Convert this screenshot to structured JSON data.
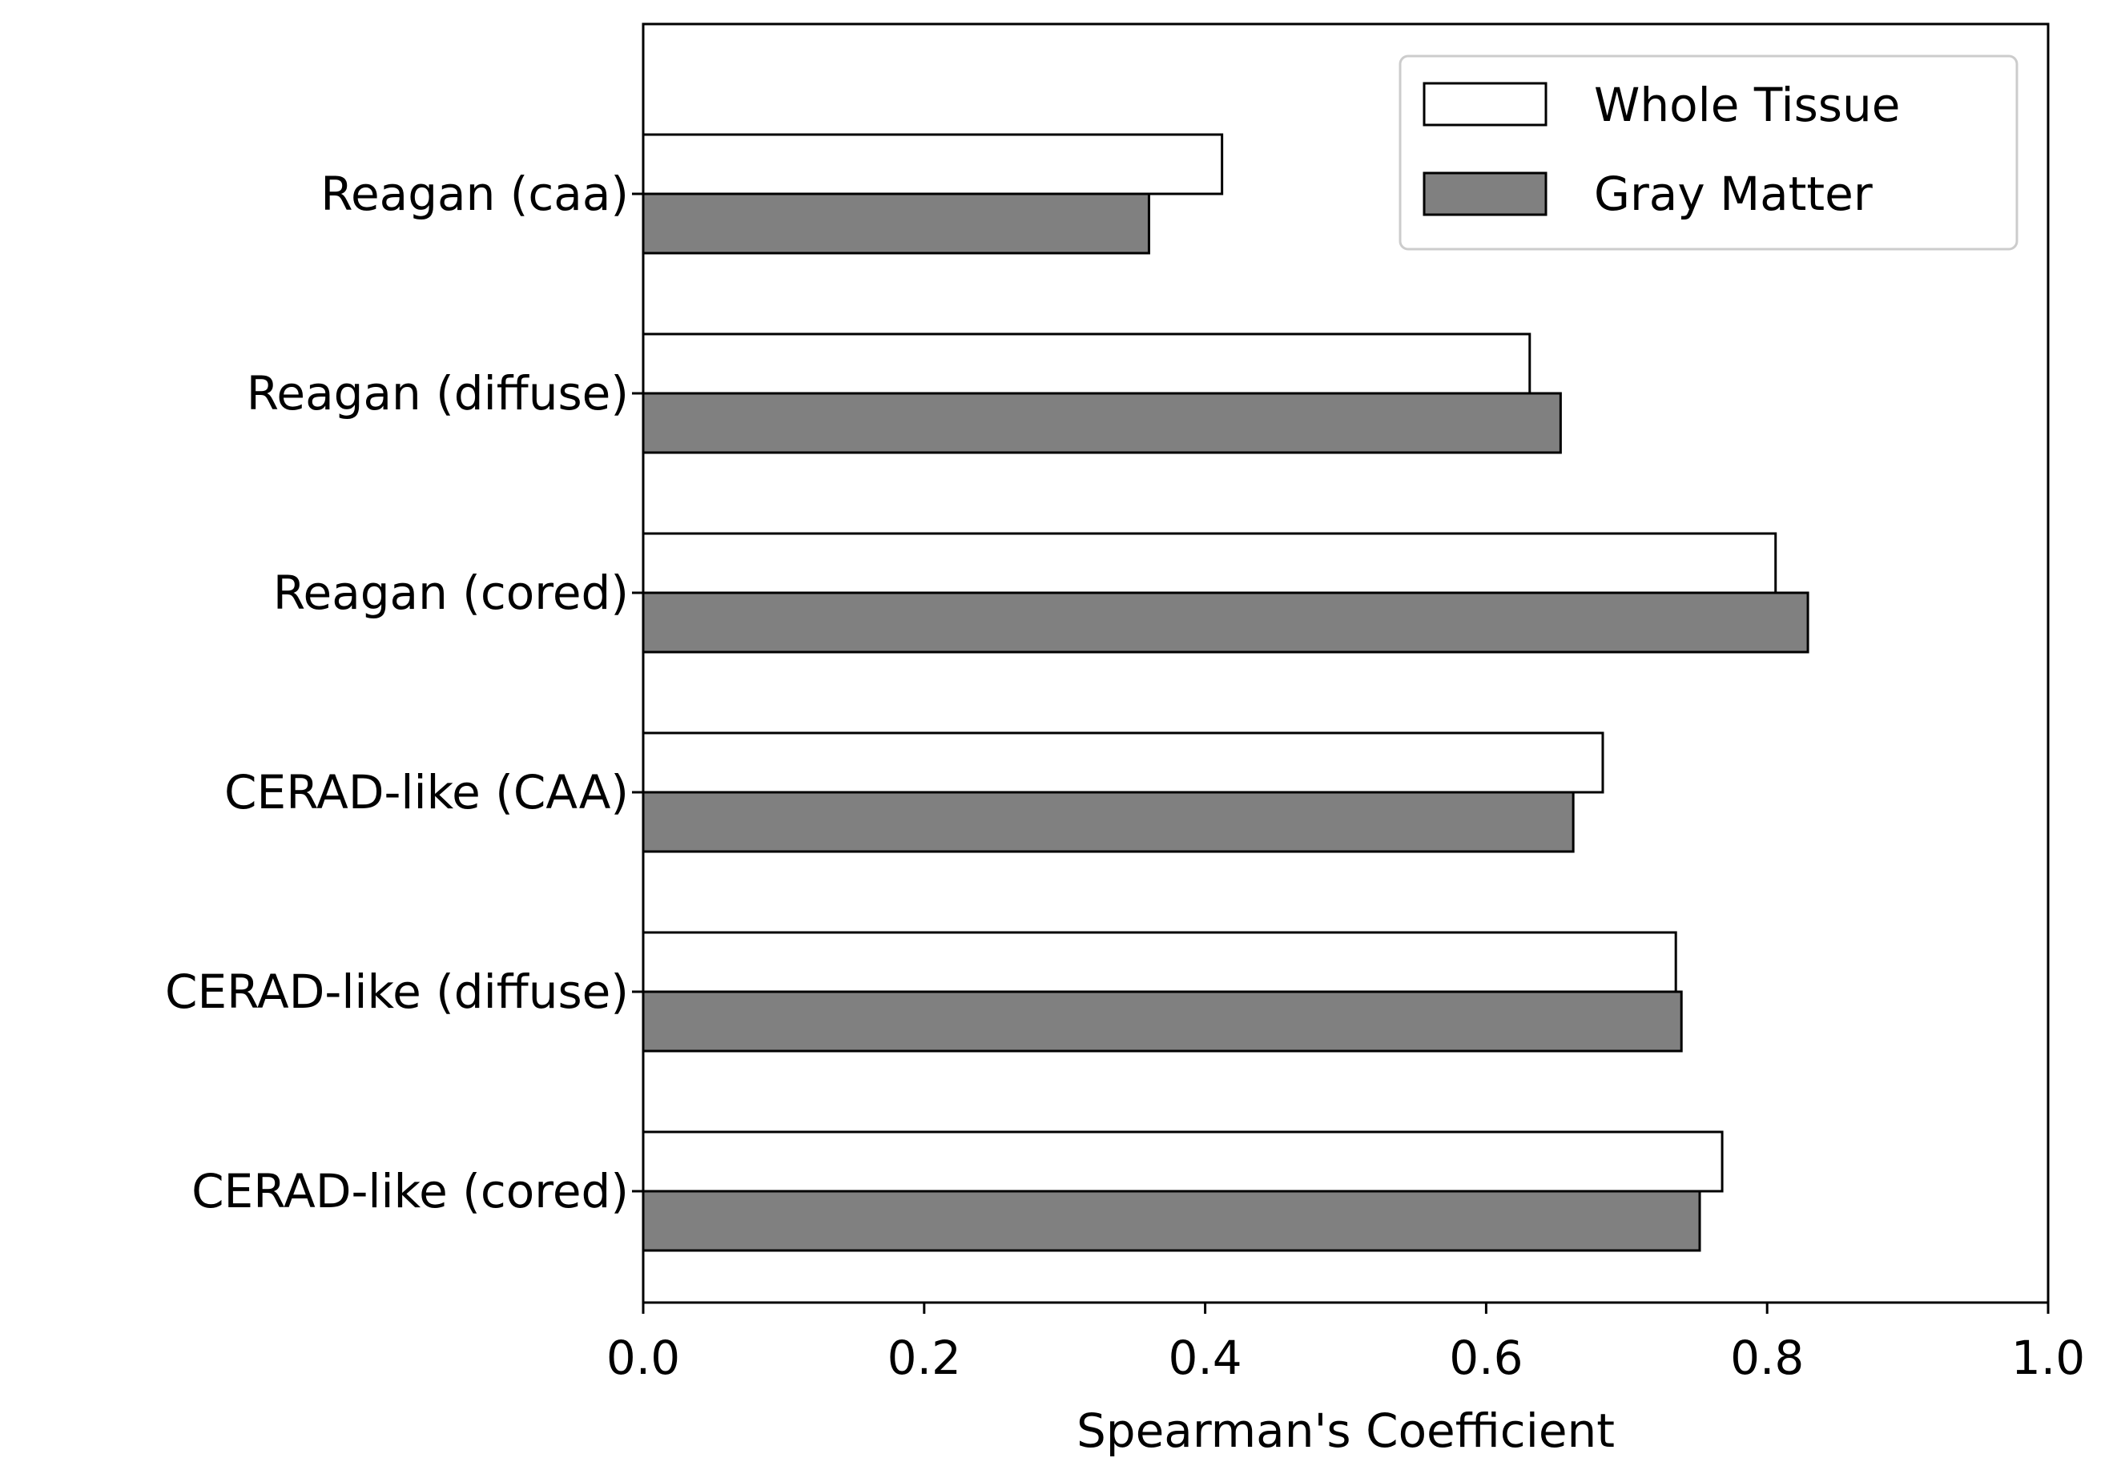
{
  "chart_data": {
    "type": "bar",
    "orientation": "horizontal",
    "categories": [
      "Reagan (caa)",
      "Reagan (diffuse)",
      "Reagan (cored)",
      "CERAD-like (CAA)",
      "CERAD-like (diffuse)",
      "CERAD-like (cored)"
    ],
    "series": [
      {
        "name": "Whole Tissue",
        "color": "#ffffff",
        "values": [
          0.412,
          0.631,
          0.806,
          0.683,
          0.735,
          0.768
        ]
      },
      {
        "name": "Gray Matter",
        "color": "#808080",
        "values": [
          0.36,
          0.653,
          0.829,
          0.662,
          0.739,
          0.752
        ]
      }
    ],
    "xlabel": "Spearman's Coefficient",
    "ylabel": "",
    "xlim": [
      0,
      1.0
    ],
    "xticks": [
      "0.0",
      "0.2",
      "0.4",
      "0.6",
      "0.8",
      "1.0"
    ],
    "grid": false,
    "legend_position": "top-right",
    "edge_color": "#000000"
  }
}
